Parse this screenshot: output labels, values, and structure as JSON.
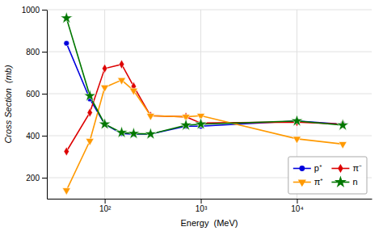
{
  "chart_data": {
    "type": "line",
    "x": [
      40,
      70,
      100,
      150,
      200,
      300,
      700,
      1000,
      10000,
      30000
    ],
    "series": [
      {
        "name": "p⁺",
        "color": "#0000dd",
        "marker": "circle",
        "values": [
          840,
          575,
          455,
          410,
          408,
          408,
          445,
          445,
          470,
          455
        ]
      },
      {
        "name": "π⁻",
        "color": "#dd0000",
        "marker": "diamond",
        "values": [
          325,
          510,
          720,
          740,
          635,
          495,
          490,
          460,
          465,
          455
        ]
      },
      {
        "name": "π⁺",
        "color": "#ff9900",
        "marker": "triangle-down",
        "values": [
          140,
          375,
          630,
          665,
          615,
          495,
          490,
          495,
          385,
          360
        ]
      },
      {
        "name": "n",
        "color": "#007700",
        "marker": "star",
        "values": [
          960,
          590,
          455,
          415,
          410,
          408,
          450,
          455,
          470,
          450
        ]
      }
    ],
    "x_label": "Energy  (MeV)",
    "y_label": "Cross Section  (mb)",
    "log": "x",
    "xlim": [
      25,
      60000
    ],
    "xticks": [
      {
        "value": 100,
        "label": "10²"
      },
      {
        "value": 1000,
        "label": "10³"
      },
      {
        "value": 10000,
        "label": "10⁴"
      }
    ],
    "ylim": [
      100,
      1000
    ],
    "yticks": [
      200,
      400,
      600,
      800,
      1000
    ],
    "grid": true,
    "legend": "lower right"
  }
}
